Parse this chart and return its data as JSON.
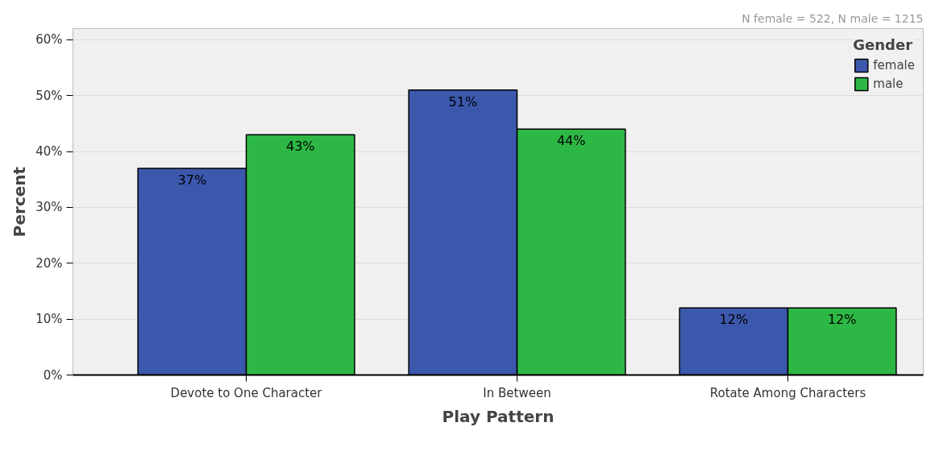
{
  "chart_data": {
    "type": "bar",
    "xlabel": "Play Pattern",
    "ylabel": "Percent",
    "legend_title": "Gender",
    "annotations": [
      "N female = 522, N male = 1215"
    ],
    "categories": [
      "Devote to One Character",
      "In Between",
      "Rotate Among Characters"
    ],
    "series": [
      {
        "name": "female",
        "color": "#3c58ad",
        "values": [
          37,
          51,
          12
        ],
        "value_labels": [
          "37%",
          "51%",
          "12%"
        ]
      },
      {
        "name": "male",
        "color": "#2db845",
        "values": [
          43,
          44,
          12
        ],
        "value_labels": [
          "43%",
          "44%",
          "12%"
        ]
      }
    ],
    "ylim": [
      0,
      62
    ],
    "yticks": [
      {
        "value": 0,
        "label": "0%"
      },
      {
        "value": 10,
        "label": "10%"
      },
      {
        "value": 20,
        "label": "20%"
      },
      {
        "value": 30,
        "label": "30%"
      },
      {
        "value": 40,
        "label": "40%"
      },
      {
        "value": 50,
        "label": "50%"
      },
      {
        "value": 60,
        "label": "60%"
      }
    ],
    "grid": "y",
    "legend": "top right"
  }
}
